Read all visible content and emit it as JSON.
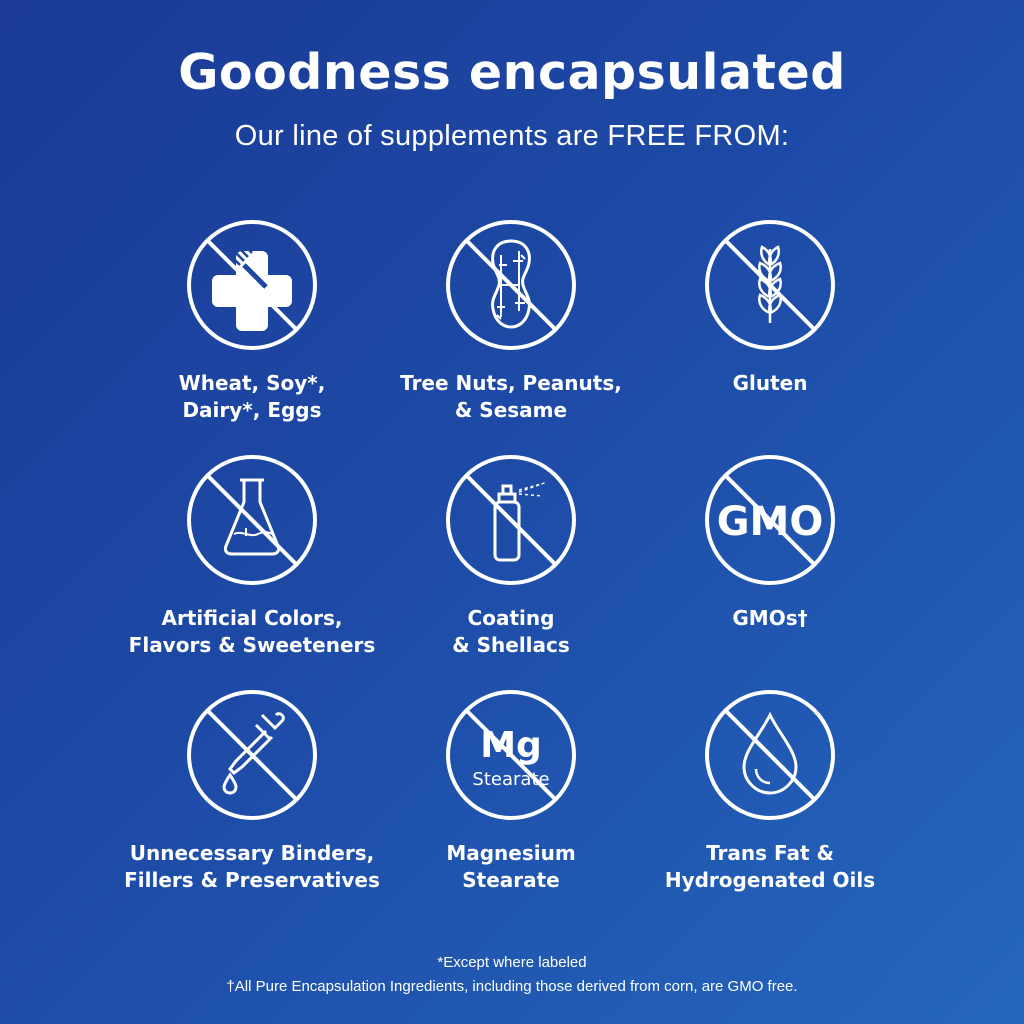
{
  "header": {
    "title": "Goodness encapsulated",
    "subtitle": "Our line of supplements are FREE FROM:"
  },
  "items": [
    {
      "icon": "wheat-soy-dairy-eggs-icon",
      "line1": "Wheat, Soy*,",
      "line2": "Dairy*, Eggs"
    },
    {
      "icon": "peanut-icon",
      "line1": "Tree Nuts, Peanuts,",
      "line2": "& Sesame"
    },
    {
      "icon": "wheat-stalk-icon",
      "line1": "Gluten",
      "line2": ""
    },
    {
      "icon": "flask-icon",
      "line1": "Artificial Colors,",
      "line2": "Flavors & Sweeteners"
    },
    {
      "icon": "spray-bottle-icon",
      "line1": "Coating",
      "line2": "& Shellacs"
    },
    {
      "icon": "gmo-icon",
      "icon_text": "GMO",
      "line1": "GMOs†",
      "line2": ""
    },
    {
      "icon": "dropper-icon",
      "line1": "Unnecessary Binders,",
      "line2": "Fillers & Preservatives"
    },
    {
      "icon": "mg-stearate-icon",
      "icon_text": "Mg",
      "icon_subtext": "Stearate",
      "line1": "Magnesium",
      "line2": "Stearate"
    },
    {
      "icon": "oil-drop-icon",
      "line1": "Trans Fat &",
      "line2": "Hydrogenated Oils"
    }
  ],
  "footer": {
    "note1": "*Except where labeled",
    "note2": "†All Pure Encapsulation Ingredients, including those derived from corn, are GMO free."
  },
  "colors": {
    "background_start": "#1a3a96",
    "background_end": "#2466bd",
    "foreground": "#ffffff"
  }
}
